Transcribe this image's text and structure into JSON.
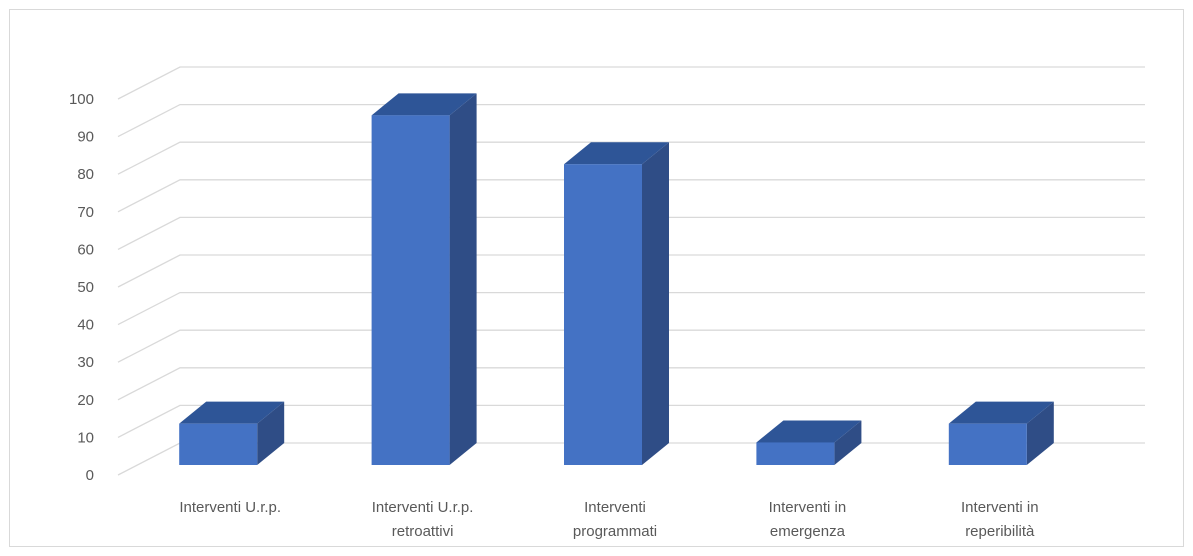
{
  "chart_data": {
    "type": "bar",
    "style": "3d-column",
    "categories": [
      [
        "Interventi U.r.p."
      ],
      [
        "Interventi U.r.p.",
        "retroattivi"
      ],
      [
        "Interventi",
        "programmati"
      ],
      [
        "Interventi in",
        "emergenza"
      ],
      [
        "Interventi in",
        "reperibilità"
      ]
    ],
    "values": [
      11,
      93,
      80,
      6,
      11
    ],
    "ylim": [
      0,
      100
    ],
    "yticks": [
      0,
      10,
      20,
      30,
      40,
      50,
      60,
      70,
      80,
      90,
      100
    ],
    "grid": true,
    "legend": "none",
    "title": "",
    "xlabel": "",
    "ylabel": "",
    "colors": {
      "front": "#4472c4",
      "side": "#2f4d86",
      "top": "#2e5597",
      "grid": "#d9d9d9",
      "text": "#595959"
    }
  }
}
